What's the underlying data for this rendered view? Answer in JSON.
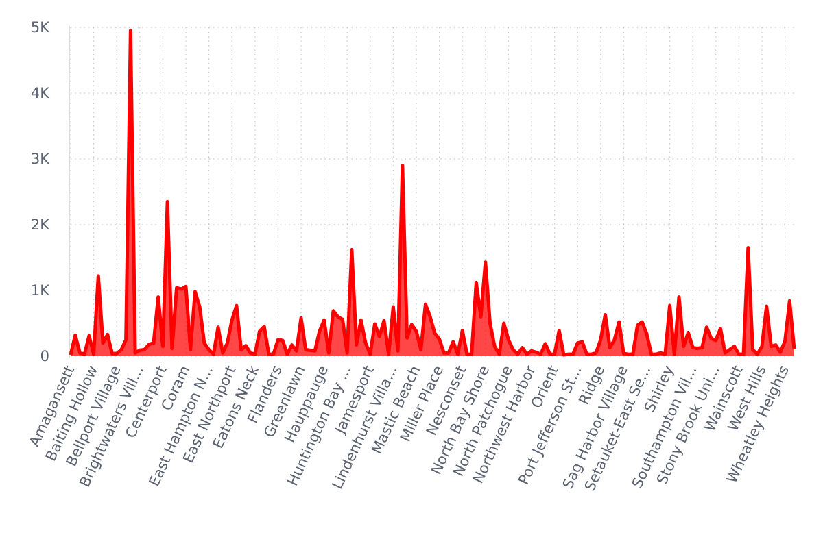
{
  "chart_data": {
    "type": "area",
    "color": "#ff0000",
    "grid": true,
    "ylim": [
      0,
      5000
    ],
    "yticks": [
      0,
      {
        "value": 1000,
        "label": "1K"
      },
      {
        "value": 2000,
        "label": "2K"
      },
      {
        "value": 3000,
        "label": "3K"
      },
      {
        "value": 4000,
        "label": "4K"
      },
      {
        "value": 5000,
        "label": "5K"
      }
    ],
    "categories": [
      "Amagansett",
      null,
      null,
      null,
      null,
      "Baiting Hollow",
      null,
      null,
      null,
      null,
      "Bellport Village",
      null,
      null,
      null,
      null,
      "Brightwaters Vill...",
      null,
      null,
      null,
      null,
      "Centerport",
      null,
      null,
      null,
      null,
      "Coram",
      null,
      null,
      null,
      null,
      "East Hampton N...",
      null,
      null,
      null,
      null,
      "East Northport",
      null,
      null,
      null,
      null,
      "Eatons Neck",
      null,
      null,
      null,
      null,
      "Flanders",
      null,
      null,
      null,
      null,
      "Greenlawn",
      null,
      null,
      null,
      null,
      "Hauppauge",
      null,
      null,
      null,
      null,
      "Huntington Bay ...",
      null,
      null,
      null,
      null,
      "Jamesport",
      null,
      null,
      null,
      null,
      "Lindenhurst Villa...",
      null,
      null,
      null,
      null,
      "Mastic Beach",
      null,
      null,
      null,
      null,
      "Miller Place",
      null,
      null,
      null,
      null,
      "Nesconset",
      null,
      null,
      null,
      null,
      "North Bay Shore",
      null,
      null,
      null,
      null,
      "North Patchogue",
      null,
      null,
      null,
      null,
      "Northwest Harbor",
      null,
      null,
      null,
      null,
      "Orient",
      null,
      null,
      null,
      null,
      "Port Jefferson St...",
      null,
      null,
      null,
      null,
      "Ridge",
      null,
      null,
      null,
      null,
      "Sag Harbor Village",
      null,
      null,
      null,
      null,
      "Setauket-East Se...",
      null,
      null,
      null,
      null,
      "Shirley",
      null,
      null,
      null,
      null,
      "Southampton Vil...",
      null,
      null,
      null,
      null,
      "Stony Brook Uni...",
      null,
      null,
      null,
      null,
      "Wainscott",
      null,
      null,
      null,
      null,
      "West Hills",
      null,
      null,
      null,
      null,
      "Wheatley Heights",
      null,
      null
    ],
    "values": [
      20,
      320,
      50,
      30,
      310,
      30,
      1220,
      200,
      330,
      40,
      40,
      100,
      250,
      4950,
      50,
      90,
      100,
      180,
      200,
      900,
      150,
      2350,
      120,
      1040,
      1020,
      1060,
      100,
      980,
      750,
      200,
      100,
      30,
      440,
      50,
      200,
      550,
      770,
      100,
      160,
      50,
      30,
      380,
      450,
      30,
      30,
      250,
      240,
      30,
      170,
      80,
      580,
      100,
      90,
      80,
      380,
      550,
      50,
      690,
      600,
      560,
      50,
      1620,
      170,
      550,
      200,
      30,
      490,
      300,
      540,
      30,
      750,
      80,
      2900,
      280,
      480,
      380,
      100,
      790,
      600,
      350,
      260,
      50,
      50,
      220,
      30,
      390,
      30,
      30,
      1120,
      600,
      1430,
      500,
      150,
      30,
      500,
      250,
      100,
      30,
      130,
      30,
      80,
      60,
      30,
      190,
      30,
      30,
      390,
      20,
      30,
      30,
      200,
      220,
      30,
      30,
      50,
      250,
      630,
      130,
      250,
      520,
      40,
      30,
      30,
      470,
      520,
      340,
      30,
      30,
      50,
      30,
      770,
      30,
      900,
      150,
      360,
      130,
      120,
      130,
      440,
      270,
      240,
      420,
      50,
      100,
      150,
      30,
      30,
      1650,
      100,
      30,
      150,
      760,
      150,
      170,
      60,
      230,
      840,
      110
    ]
  }
}
